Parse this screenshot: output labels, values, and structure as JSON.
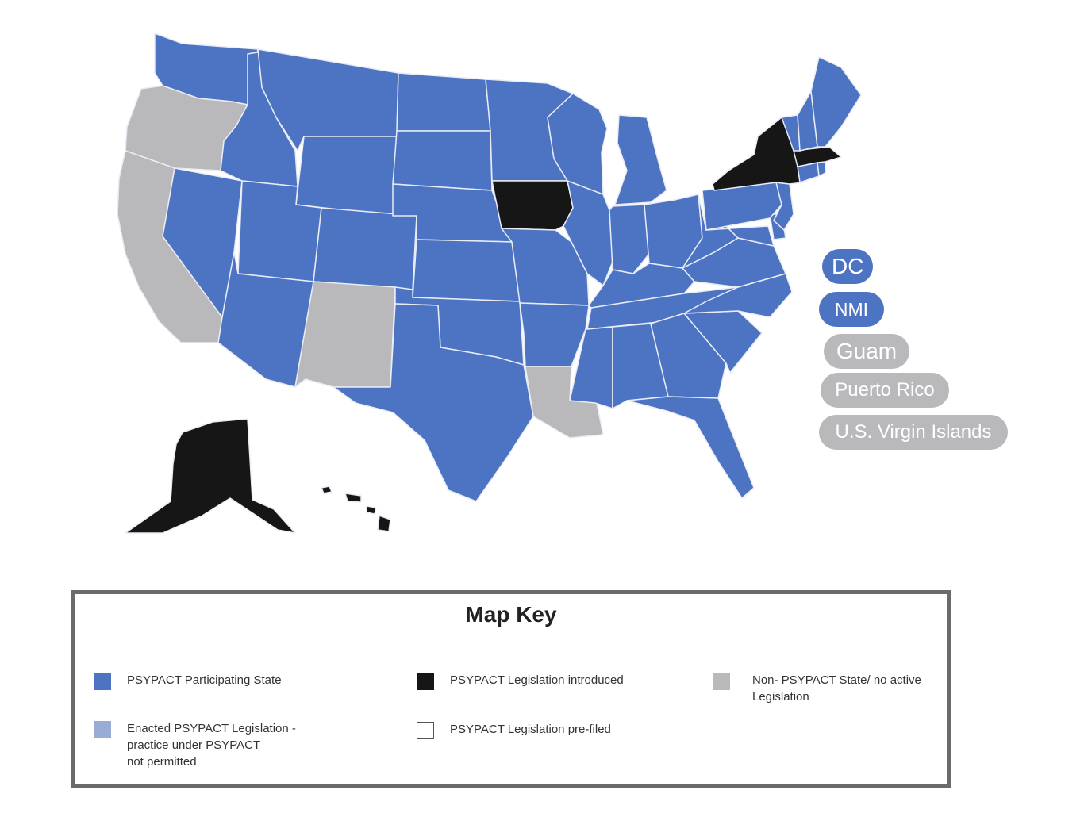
{
  "colors": {
    "participating": "#4d74c3",
    "enacted_not_permitted": "#98acd6",
    "legislation_introduced": "#161616",
    "pre_filed": "#ffffff",
    "non_psypact": "#b9b9bb"
  },
  "states": [
    {
      "name": "Washington",
      "status": "participating"
    },
    {
      "name": "Oregon",
      "status": "non_psypact"
    },
    {
      "name": "California",
      "status": "non_psypact"
    },
    {
      "name": "Nevada",
      "status": "participating"
    },
    {
      "name": "Idaho",
      "status": "participating"
    },
    {
      "name": "Montana",
      "status": "participating"
    },
    {
      "name": "Wyoming",
      "status": "participating"
    },
    {
      "name": "Utah",
      "status": "participating"
    },
    {
      "name": "Arizona",
      "status": "participating"
    },
    {
      "name": "Colorado",
      "status": "participating"
    },
    {
      "name": "New Mexico",
      "status": "non_psypact"
    },
    {
      "name": "North Dakota",
      "status": "participating"
    },
    {
      "name": "South Dakota",
      "status": "participating"
    },
    {
      "name": "Nebraska",
      "status": "participating"
    },
    {
      "name": "Kansas",
      "status": "participating"
    },
    {
      "name": "Oklahoma",
      "status": "participating"
    },
    {
      "name": "Texas",
      "status": "participating"
    },
    {
      "name": "Minnesota",
      "status": "participating"
    },
    {
      "name": "Iowa",
      "status": "legislation_introduced"
    },
    {
      "name": "Missouri",
      "status": "participating"
    },
    {
      "name": "Arkansas",
      "status": "participating"
    },
    {
      "name": "Louisiana",
      "status": "non_psypact"
    },
    {
      "name": "Wisconsin",
      "status": "participating"
    },
    {
      "name": "Illinois",
      "status": "participating"
    },
    {
      "name": "Michigan",
      "status": "participating"
    },
    {
      "name": "Indiana",
      "status": "participating"
    },
    {
      "name": "Ohio",
      "status": "participating"
    },
    {
      "name": "Kentucky",
      "status": "participating"
    },
    {
      "name": "Tennessee",
      "status": "participating"
    },
    {
      "name": "Mississippi",
      "status": "participating"
    },
    {
      "name": "Alabama",
      "status": "participating"
    },
    {
      "name": "Georgia",
      "status": "participating"
    },
    {
      "name": "Florida",
      "status": "participating"
    },
    {
      "name": "South Carolina",
      "status": "participating"
    },
    {
      "name": "North Carolina",
      "status": "participating"
    },
    {
      "name": "Virginia",
      "status": "participating"
    },
    {
      "name": "West Virginia",
      "status": "participating"
    },
    {
      "name": "Maryland",
      "status": "participating"
    },
    {
      "name": "Delaware",
      "status": "participating"
    },
    {
      "name": "Pennsylvania",
      "status": "participating"
    },
    {
      "name": "New Jersey",
      "status": "participating"
    },
    {
      "name": "New York",
      "status": "legislation_introduced"
    },
    {
      "name": "Connecticut",
      "status": "participating"
    },
    {
      "name": "Rhode Island",
      "status": "participating"
    },
    {
      "name": "Massachusetts",
      "status": "legislation_introduced"
    },
    {
      "name": "Vermont",
      "status": "participating"
    },
    {
      "name": "New Hampshire",
      "status": "participating"
    },
    {
      "name": "Maine",
      "status": "participating"
    },
    {
      "name": "Alaska",
      "status": "legislation_introduced"
    },
    {
      "name": "Hawaii",
      "status": "legislation_introduced"
    }
  ],
  "territories": [
    {
      "label": "DC",
      "status": "participating"
    },
    {
      "label": "NMI",
      "status": "participating"
    },
    {
      "label": "Guam",
      "status": "non_psypact"
    },
    {
      "label": "Puerto Rico",
      "status": "non_psypact"
    },
    {
      "label": "U.S. Virgin Islands",
      "status": "non_psypact"
    }
  ],
  "key": {
    "title": "Map Key",
    "items": [
      {
        "status": "participating",
        "label": "PSYPACT Participating State"
      },
      {
        "status": "legislation_introduced",
        "label": "PSYPACT Legislation introduced"
      },
      {
        "status": "non_psypact",
        "label": "Non- PSYPACT State/ no active\nLegislation"
      },
      {
        "status": "enacted_not_permitted",
        "label": "Enacted  PSYPACT Legislation -\npractice under PSYPACT\nnot permitted"
      },
      {
        "status": "pre_filed",
        "label": "PSYPACT Legislation pre-filed"
      }
    ]
  }
}
